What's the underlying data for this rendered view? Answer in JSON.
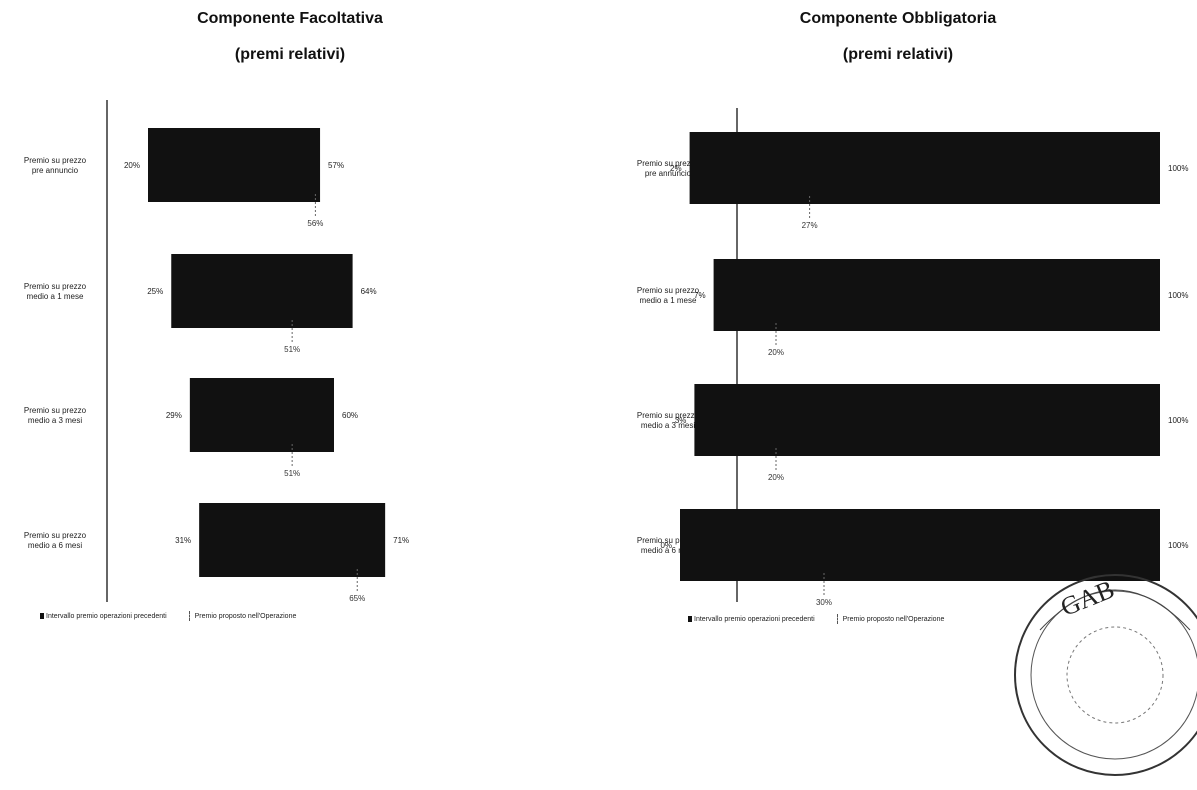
{
  "chart_data": [
    {
      "type": "bar",
      "title": "Componente Facoltativa",
      "subtitle": "(premi relativi)",
      "xlim": [
        0,
        100
      ],
      "categories": [
        "Premio su prezzo pre annuncio",
        "Premio su prezzo medio a 1 mese",
        "Premio su prezzo medio a 3 mesi",
        "Premio su prezzo medio a 6 mesi"
      ],
      "ranges": [
        [
          20,
          57
        ],
        [
          25,
          64
        ],
        [
          29,
          60
        ],
        [
          31,
          71
        ]
      ],
      "range_labels": [
        [
          "20%",
          "57%"
        ],
        [
          "25%",
          "64%"
        ],
        [
          "29%",
          "60%"
        ],
        [
          "31%",
          "71%"
        ]
      ],
      "proposed": [
        56,
        51,
        51,
        65
      ],
      "proposed_labels": [
        "56%",
        "51%",
        "51%",
        "65%"
      ],
      "legend": [
        "Intervallo premio operazioni precedenti",
        "Premio proposto nell'Operazione"
      ],
      "legend_position": "bottom",
      "grid": false
    },
    {
      "type": "bar",
      "title": "Componente Obbligatoria",
      "subtitle": "(premi relativi)",
      "xlim": [
        0,
        100
      ],
      "categories": [
        "Premio su prezzo pre annuncio",
        "Premio su prezzo medio a 1 mese",
        "Premio su prezzo medio a 3 mesi",
        "Premio su prezzo medio a 6 mesi"
      ],
      "ranges": [
        [
          2,
          100
        ],
        [
          7,
          100
        ],
        [
          3,
          100
        ],
        [
          0,
          100
        ]
      ],
      "range_labels": [
        [
          "2%",
          "100%"
        ],
        [
          "7%",
          "100%"
        ],
        [
          "3%",
          "100%"
        ],
        [
          "0%",
          "100%"
        ]
      ],
      "proposed": [
        27,
        20,
        20,
        30
      ],
      "proposed_labels": [
        "27%",
        "20%",
        "20%",
        "30%"
      ],
      "legend": [
        "Intervallo premio operazioni precedenti",
        "Premio proposto nell'Operazione"
      ],
      "legend_position": "bottom",
      "grid": false
    }
  ],
  "colors": {
    "bar": "#111111",
    "text": "#222222",
    "axis": "#000000"
  },
  "decorations": {
    "stamp_text": "GAB"
  }
}
